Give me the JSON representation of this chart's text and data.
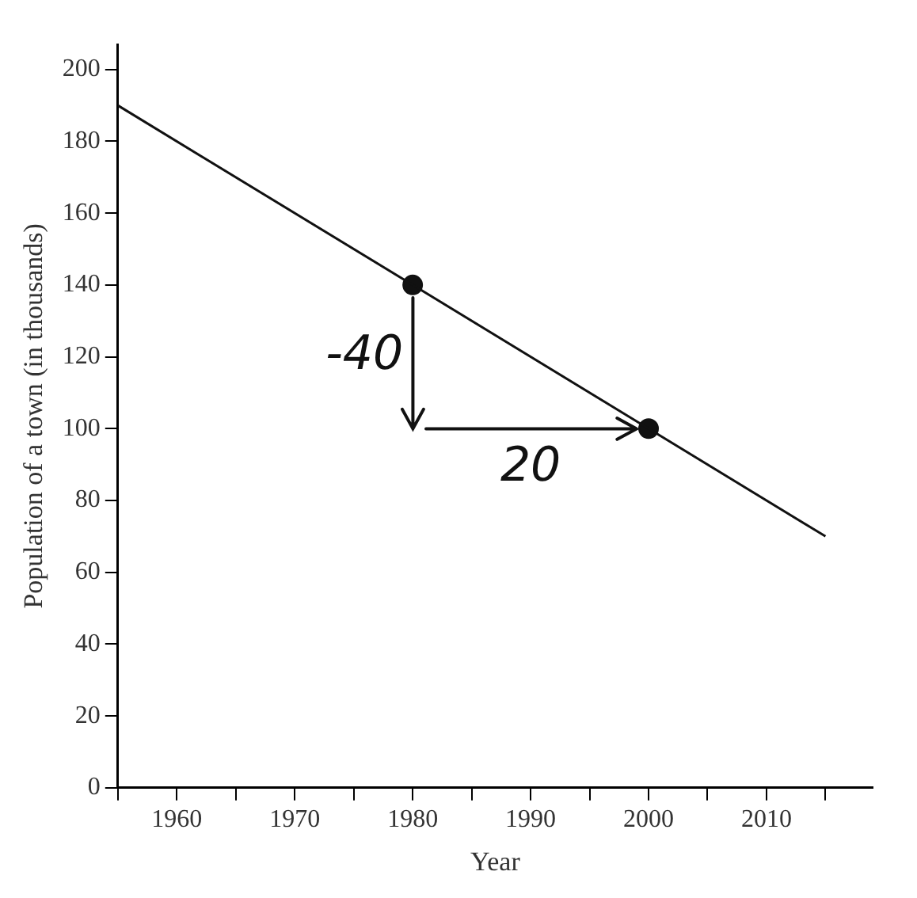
{
  "chart_data": {
    "type": "line",
    "xlabel": "Year",
    "ylabel": "Population of a town (in thousands)",
    "series": [
      {
        "x": [
          1955,
          2015
        ],
        "values": [
          190,
          70
        ],
        "color": "#111111",
        "marker": "none"
      },
      {
        "type": "scatter",
        "x": [
          1980,
          2000
        ],
        "values": [
          140,
          100
        ],
        "color": "#111111",
        "marker": "circle"
      }
    ],
    "xlim": [
      1955,
      2019
    ],
    "ylim": [
      0,
      207
    ],
    "xticks": [
      {
        "value": 1955,
        "label": null
      },
      1960,
      {
        "value": 1965,
        "label": null
      },
      1970,
      {
        "value": 1975,
        "label": null
      },
      1980,
      {
        "value": 1985,
        "label": null
      },
      1990,
      {
        "value": 1995,
        "label": null
      },
      2000,
      {
        "value": 2005,
        "label": null
      },
      2010,
      {
        "value": 2015,
        "label": null
      }
    ],
    "yticks": [
      0,
      20,
      40,
      60,
      80,
      100,
      120,
      140,
      160,
      180,
      200
    ],
    "annotations": [
      {
        "text": "-40",
        "x": 1980,
        "y": 140
      },
      {
        "text": "20",
        "x": 2000,
        "y": 100
      }
    ],
    "grid": false,
    "legend": false
  }
}
